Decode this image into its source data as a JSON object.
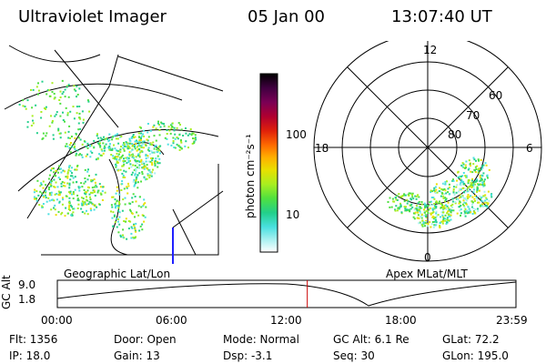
{
  "header": {
    "title": "Ultraviolet Imager",
    "date": "05 Jan 00",
    "time": "13:07:40 UT"
  },
  "left_panel": {
    "label": "Geographic Lat/Lon"
  },
  "right_panel": {
    "label": "Apex  MLat/MLT",
    "mlt_labels": [
      "12",
      "18",
      "6",
      "0"
    ],
    "lat_labels": [
      "60",
      "70",
      "80"
    ]
  },
  "colorbar": {
    "unit_label": "photon cm⁻²s⁻¹",
    "ticks": [
      "100",
      "10"
    ],
    "colors": [
      "#000000",
      "#400040",
      "#7a0055",
      "#b00030",
      "#e0200a",
      "#ff6a00",
      "#ffb000",
      "#e8e000",
      "#a8ee20",
      "#4fe040",
      "#22d08a",
      "#4ae0e0",
      "#a8f0f0",
      "#ffffff"
    ]
  },
  "altitude_plot": {
    "ylabel": "GC Alt",
    "yticks": [
      "9.0",
      "1.8"
    ],
    "xticks": [
      "00:00",
      "06:00",
      "12:00",
      "18:00",
      "23:59"
    ],
    "current_marker_fraction": 0.545,
    "marker_color": "#cc0000"
  },
  "info": {
    "flt": "Flt:  1356",
    "ip": "IP:  18.0",
    "door": "Door:  Open",
    "gain": "Gain:  13",
    "mode": "Mode:  Normal",
    "dsp": "Dsp:     -3.1",
    "gc_alt": "GC Alt:  6.1 Re",
    "seq": "Seq:  30",
    "glat": "GLat:      72.2",
    "glon": "GLon:  195.0"
  }
}
